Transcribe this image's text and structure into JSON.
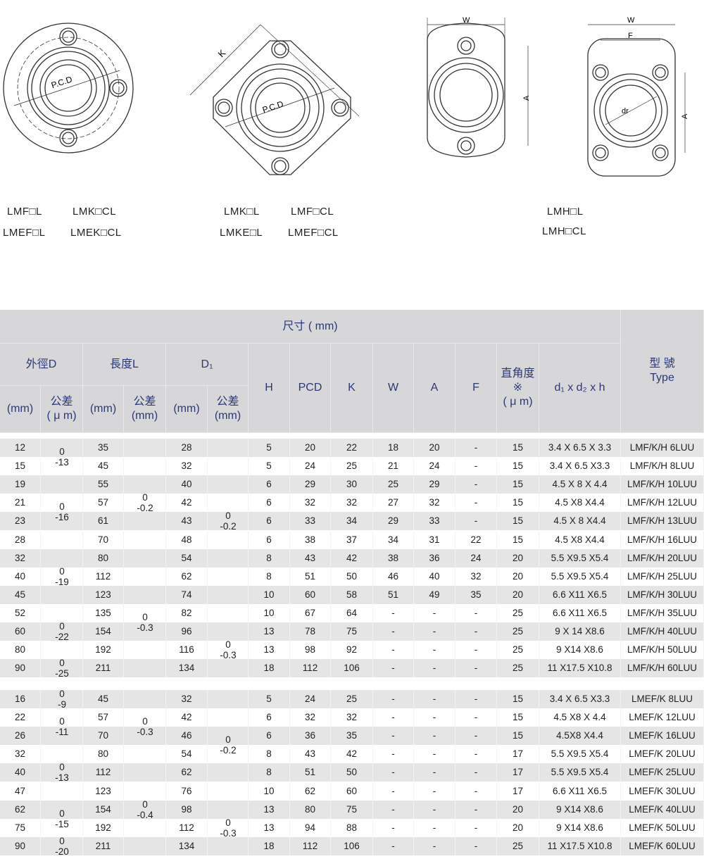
{
  "diagrams": {
    "d1": {
      "pcd": "P.C.D",
      "labels": [
        "LMF□L",
        "LMK□CL",
        "LMEF□L",
        "LMEK□CL"
      ]
    },
    "d2": {
      "pcd": "P.C.D",
      "k": "K",
      "labels": [
        "LMK□L",
        "LMF□CL",
        "LMKE□L",
        "LMEF□CL"
      ]
    },
    "d3": {
      "w": "W",
      "a": "A"
    },
    "d4": {
      "w": "W",
      "f": "F",
      "dr": "dr",
      "a": "A",
      "labels": [
        "LMH□L",
        "LMH□CL"
      ]
    }
  },
  "header": {
    "dimensions": "尺寸 ( mm)",
    "outer_d": "外徑D",
    "length_l": "長度L",
    "d1": "D₁",
    "mm": "(mm)",
    "tol": "公差",
    "tol_um": "( μ m)",
    "tol_mm": "(mm)",
    "h": "H",
    "pcd": "PCD",
    "k": "K",
    "w": "W",
    "a": "A",
    "f": "F",
    "squareness": "直角度",
    "squareness_mark": "※",
    "squareness_unit": "( μ m)",
    "bolt": "d₁ x d₂ x h",
    "type_cn": "型 號",
    "type_en": "Type"
  },
  "groups": [
    {
      "rows": [
        [
          "12",
          "35",
          "28",
          "5",
          "20",
          "22",
          "18",
          "20",
          "-",
          "15",
          "3.4 X 6.5 X 3.3",
          "LMF/K/H 6LUU"
        ],
        [
          "15",
          "45",
          "32",
          "5",
          "24",
          "25",
          "21",
          "24",
          "-",
          "15",
          "3.4 X 6.5 X3.3",
          "LMF/K/H 8LUU"
        ],
        [
          "19",
          "55",
          "40",
          "6",
          "29",
          "30",
          "25",
          "29",
          "-",
          "15",
          "4.5 X 8 X 4.4",
          "LMF/K/H 10LUU"
        ],
        [
          "21",
          "57",
          "42",
          "6",
          "32",
          "32",
          "27",
          "32",
          "-",
          "15",
          "4.5 X8 X4.4",
          "LMF/K/H 12LUU"
        ],
        [
          "23",
          "61",
          "43",
          "6",
          "33",
          "34",
          "29",
          "33",
          "-",
          "15",
          "4.5 X 8 X4.4",
          "LMF/K/H 13LUU"
        ],
        [
          "28",
          "70",
          "48",
          "6",
          "38",
          "37",
          "34",
          "31",
          "22",
          "15",
          "4.5 X8 X4.4",
          "LMF/K/H 16LUU"
        ],
        [
          "32",
          "80",
          "54",
          "8",
          "43",
          "42",
          "38",
          "36",
          "24",
          "20",
          "5.5 X9.5 X5.4",
          "LMF/K/H 20LUU"
        ],
        [
          "40",
          "112",
          "62",
          "8",
          "51",
          "50",
          "46",
          "40",
          "32",
          "20",
          "5.5 X9.5 X5.4",
          "LMF/K/H 25LUU"
        ],
        [
          "45",
          "123",
          "74",
          "10",
          "60",
          "58",
          "51",
          "49",
          "35",
          "20",
          "6.6 X11 X6.5",
          "LMF/K/H 30LUU"
        ],
        [
          "52",
          "135",
          "82",
          "10",
          "67",
          "64",
          "-",
          "-",
          "-",
          "25",
          "6.6 X11 X6.5",
          "LMF/K/H 35LUU"
        ],
        [
          "60",
          "154",
          "96",
          "13",
          "78",
          "75",
          "-",
          "-",
          "-",
          "25",
          "9 X 14 X8.6",
          "LMF/K/H 40LUU"
        ],
        [
          "80",
          "192",
          "116",
          "13",
          "98",
          "92",
          "-",
          "-",
          "-",
          "25",
          "9 X14 X8.6",
          "LMF/K/H 50LUU"
        ],
        [
          "90",
          "211",
          "134",
          "18",
          "112",
          "106",
          "-",
          "-",
          "-",
          "25",
          "11 X17.5 X10.8",
          "LMF/K/H 60LUU"
        ]
      ],
      "tolerances": [
        {
          "col": "D",
          "upper": "0",
          "lower": "-13",
          "rows": [
            0,
            1
          ]
        },
        {
          "col": "D",
          "upper": "0",
          "lower": "-16",
          "rows": [
            3,
            4
          ]
        },
        {
          "col": "D",
          "upper": "0",
          "lower": "-19",
          "rows": [
            7,
            7
          ]
        },
        {
          "col": "D",
          "upper": "0",
          "lower": "-22",
          "rows": [
            10,
            10
          ]
        },
        {
          "col": "D",
          "upper": "0",
          "lower": "-25",
          "rows": [
            12,
            12
          ]
        },
        {
          "col": "L",
          "upper": "0",
          "lower": "-0.2",
          "rows": [
            3,
            3
          ]
        },
        {
          "col": "L",
          "upper": "0",
          "lower": "-0.3",
          "rows": [
            9,
            10
          ]
        },
        {
          "col": "D1",
          "upper": "0",
          "lower": "-0.2",
          "rows": [
            4,
            4
          ]
        },
        {
          "col": "D1",
          "upper": "0",
          "lower": "-0.3",
          "rows": [
            11,
            11
          ]
        }
      ]
    },
    {
      "rows": [
        [
          "16",
          "45",
          "32",
          "5",
          "24",
          "25",
          "-",
          "-",
          "-",
          "15",
          "3.4 X 6.5 X3.3",
          "LMEF/K 8LUU"
        ],
        [
          "22",
          "57",
          "42",
          "6",
          "32",
          "32",
          "-",
          "-",
          "-",
          "15",
          "4.5 X8 X 4.4",
          "LMEF/K 12LUU"
        ],
        [
          "26",
          "70",
          "46",
          "6",
          "36",
          "35",
          "-",
          "-",
          "-",
          "15",
          "4.5X8 X4.4",
          "LMEF/K 16LUU"
        ],
        [
          "32",
          "80",
          "54",
          "8",
          "43",
          "42",
          "-",
          "-",
          "-",
          "17",
          "5.5 X9.5 X5.4",
          "LMEF/K 20LUU"
        ],
        [
          "40",
          "112",
          "62",
          "8",
          "51",
          "50",
          "-",
          "-",
          "-",
          "17",
          "5.5 X9.5 X5.4",
          "LMEF/K 25LUU"
        ],
        [
          "47",
          "123",
          "76",
          "10",
          "62",
          "60",
          "-",
          "-",
          "-",
          "17",
          "6.6 X11 X6.5",
          "LMEF/K 30LUU"
        ],
        [
          "62",
          "154",
          "98",
          "13",
          "80",
          "75",
          "-",
          "-",
          "-",
          "20",
          "9 X14 X8.6",
          "LMEF/K 40LUU"
        ],
        [
          "75",
          "192",
          "112",
          "13",
          "94",
          "88",
          "-",
          "-",
          "-",
          "20",
          "9 X14 X8.6",
          "LMEF/K 50LUU"
        ],
        [
          "90",
          "211",
          "134",
          "18",
          "112",
          "106",
          "-",
          "-",
          "-",
          "25",
          "11 X17.5 X10.8",
          "LMEF/K 60LUU"
        ]
      ],
      "tolerances": [
        {
          "col": "D",
          "upper": "0",
          "lower": "-9",
          "rows": [
            0,
            0
          ]
        },
        {
          "col": "D",
          "upper": "0",
          "lower": "-11",
          "rows": [
            1,
            2
          ]
        },
        {
          "col": "D",
          "upper": "0",
          "lower": "-13",
          "rows": [
            4,
            4
          ]
        },
        {
          "col": "D",
          "upper": "0",
          "lower": "-15",
          "rows": [
            6,
            7
          ]
        },
        {
          "col": "D",
          "upper": "0",
          "lower": "-20",
          "rows": [
            8,
            8
          ]
        },
        {
          "col": "L",
          "upper": "0",
          "lower": "-0.3",
          "rows": [
            1,
            2
          ]
        },
        {
          "col": "L",
          "upper": "0",
          "lower": "-0.4",
          "rows": [
            6,
            6
          ]
        },
        {
          "col": "D1",
          "upper": "0",
          "lower": "-0.2",
          "rows": [
            2,
            3
          ]
        },
        {
          "col": "D1",
          "upper": "0",
          "lower": "-0.3",
          "rows": [
            7,
            7
          ]
        }
      ]
    }
  ],
  "colors": {
    "header_bg": "#d7d7d9",
    "header_text": "#2b3878",
    "row_alt": "#e5e5e5"
  }
}
